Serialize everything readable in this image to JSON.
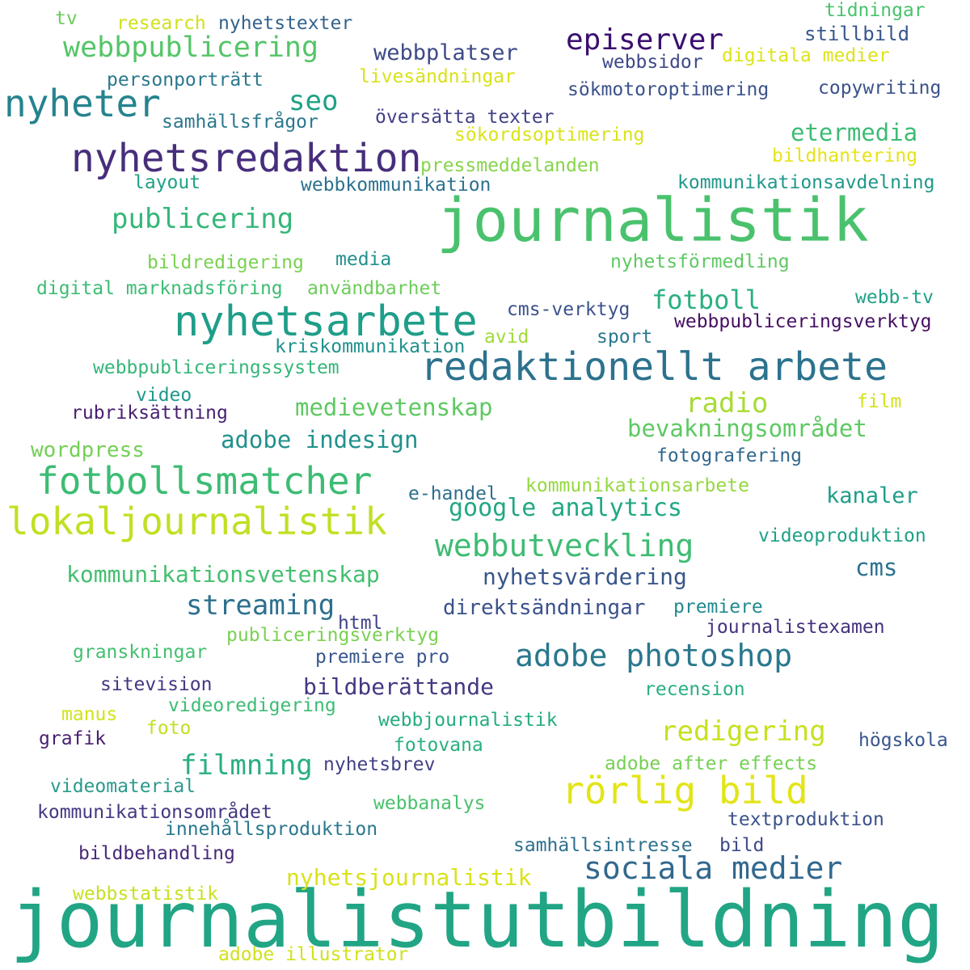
{
  "words": [
    {
      "text": "journalistutbildning",
      "color": "#21a585"
    },
    {
      "text": "journalistik",
      "color": "#4ac26d"
    },
    {
      "text": "nyhetsredaktion",
      "color": "#472e7c"
    },
    {
      "text": "redaktionellt arbete",
      "color": "#2c728e"
    },
    {
      "text": "nyhetsarbete",
      "color": "#1f9e89"
    },
    {
      "text": "fotbollsmatcher",
      "color": "#3dbc74"
    },
    {
      "text": "lokaljournalistik",
      "color": "#c2df23"
    },
    {
      "text": "nyheter",
      "color": "#25838e"
    },
    {
      "text": "rörlig bild",
      "color": "#e3e418"
    },
    {
      "text": "sociala medier",
      "color": "#31688e"
    },
    {
      "text": "adobe photoshop",
      "color": "#2a788e"
    },
    {
      "text": "webbutveckling",
      "color": "#3fbc73"
    },
    {
      "text": "episerver",
      "color": "#3b0f70"
    },
    {
      "text": "webbpublicering",
      "color": "#54c568"
    },
    {
      "text": "publicering",
      "color": "#35b779"
    },
    {
      "text": "streaming",
      "color": "#2d708e"
    },
    {
      "text": "filmning",
      "color": "#29af7f"
    },
    {
      "text": "redigering",
      "color": "#c8e020"
    },
    {
      "text": "radio",
      "color": "#a8db34"
    },
    {
      "text": "seo",
      "color": "#1fa187"
    },
    {
      "text": "fotboll",
      "color": "#2ab07f"
    },
    {
      "text": "google analytics",
      "color": "#22a884"
    },
    {
      "text": "etermedia",
      "color": "#3dbc74"
    },
    {
      "text": "medievetenskap",
      "color": "#5ec962"
    },
    {
      "text": "bevakningsområdet",
      "color": "#5ec962"
    },
    {
      "text": "adobe indesign",
      "color": "#21918c"
    },
    {
      "text": "kommunikationsvetenskap",
      "color": "#44bf70"
    },
    {
      "text": "nyhetsvärdering",
      "color": "#39568c"
    },
    {
      "text": "nyhetsjournalistik",
      "color": "#d8e219"
    },
    {
      "text": "bildberättande",
      "color": "#453882"
    },
    {
      "text": "webbplatser",
      "color": "#3e4a89"
    },
    {
      "text": "kanaler",
      "color": "#1f9e89"
    },
    {
      "text": "cms",
      "color": "#2c728e"
    },
    {
      "text": "direktsändningar",
      "color": "#3b528b"
    },
    {
      "text": "wordpress",
      "color": "#73d056"
    },
    {
      "text": "tidningar",
      "color": "#4ac26d"
    },
    {
      "text": "stillbild",
      "color": "#38588c"
    },
    {
      "text": "webbsidor",
      "color": "#3e4989"
    },
    {
      "text": "digitala medier",
      "color": "#dde318"
    },
    {
      "text": "research",
      "color": "#d0e11c"
    },
    {
      "text": "nyhetstexter",
      "color": "#33638d"
    },
    {
      "text": "tv",
      "color": "#6ccd5a"
    },
    {
      "text": "personporträtt",
      "color": "#2a788e"
    },
    {
      "text": "livesändningar",
      "color": "#d8e219"
    },
    {
      "text": "sökmotoroptimering",
      "color": "#3b528b"
    },
    {
      "text": "copywriting",
      "color": "#3b528b"
    },
    {
      "text": "samhällsfrågor",
      "color": "#2a788e"
    },
    {
      "text": "översätta texter",
      "color": "#424186"
    },
    {
      "text": "sökordsoptimering",
      "color": "#dae319"
    },
    {
      "text": "bildhantering",
      "color": "#e5e419"
    },
    {
      "text": "pressmeddelanden",
      "color": "#86d549"
    },
    {
      "text": "layout",
      "color": "#1fa187"
    },
    {
      "text": "webbkommunikation",
      "color": "#2c728e"
    },
    {
      "text": "kommunikationsavdelning",
      "color": "#1f988b"
    },
    {
      "text": "bildredigering",
      "color": "#7ad151"
    },
    {
      "text": "media",
      "color": "#21918c"
    },
    {
      "text": "nyhetsförmedling",
      "color": "#5ec962"
    },
    {
      "text": "digital marknadsföring",
      "color": "#3dbc74"
    },
    {
      "text": "användbarhet",
      "color": "#6ccd5a"
    },
    {
      "text": "cms-verktyg",
      "color": "#3b528b"
    },
    {
      "text": "webb-tv",
      "color": "#1fa187"
    },
    {
      "text": "webbpubliceringsverktyg",
      "color": "#471063"
    },
    {
      "text": "avid",
      "color": "#a0da39"
    },
    {
      "text": "sport",
      "color": "#2a788e"
    },
    {
      "text": "kriskommunikation",
      "color": "#21918c"
    },
    {
      "text": "webbpubliceringssystem",
      "color": "#35b779"
    },
    {
      "text": "video",
      "color": "#1f988b"
    },
    {
      "text": "film",
      "color": "#d2e21b"
    },
    {
      "text": "rubriksättning",
      "color": "#482173"
    },
    {
      "text": "fotografering",
      "color": "#31688e"
    },
    {
      "text": "e-handel",
      "color": "#2d708e"
    },
    {
      "text": "kommunikationsarbete",
      "color": "#95d840"
    },
    {
      "text": "videoproduktion",
      "color": "#1fa187"
    },
    {
      "text": "premiere",
      "color": "#23898e"
    },
    {
      "text": "journalistexamen",
      "color": "#46327e"
    },
    {
      "text": "html",
      "color": "#414487"
    },
    {
      "text": "publiceringsverktyg",
      "color": "#7ad151"
    },
    {
      "text": "granskningar",
      "color": "#44bf70"
    },
    {
      "text": "premiere pro",
      "color": "#39568c"
    },
    {
      "text": "sitevision",
      "color": "#443983"
    },
    {
      "text": "recension",
      "color": "#29af7f"
    },
    {
      "text": "manus",
      "color": "#d2e21b"
    },
    {
      "text": "videoredigering",
      "color": "#3dbc74"
    },
    {
      "text": "foto",
      "color": "#c2df23"
    },
    {
      "text": "webbjournalistik",
      "color": "#25ac82"
    },
    {
      "text": "grafik",
      "color": "#481f70"
    },
    {
      "text": "fotovana",
      "color": "#2ab07f"
    },
    {
      "text": "högskola",
      "color": "#39568c"
    },
    {
      "text": "nyhetsbrev",
      "color": "#424186"
    },
    {
      "text": "adobe after effects",
      "color": "#75d054"
    },
    {
      "text": "videomaterial",
      "color": "#2a9a8b"
    },
    {
      "text": "webbanalys",
      "color": "#4ac26d"
    },
    {
      "text": "kommunikationsområdet",
      "color": "#453882"
    },
    {
      "text": "innehållsproduktion",
      "color": "#2a788e"
    },
    {
      "text": "textproduktion",
      "color": "#3b528b"
    },
    {
      "text": "samhällsintresse",
      "color": "#2d708e"
    },
    {
      "text": "bild",
      "color": "#3e4a89"
    },
    {
      "text": "bildbehandling",
      "color": "#482979"
    },
    {
      "text": "webbstatistik",
      "color": "#c8e020"
    },
    {
      "text": "adobe illustrator",
      "color": "#d0e11c"
    }
  ]
}
